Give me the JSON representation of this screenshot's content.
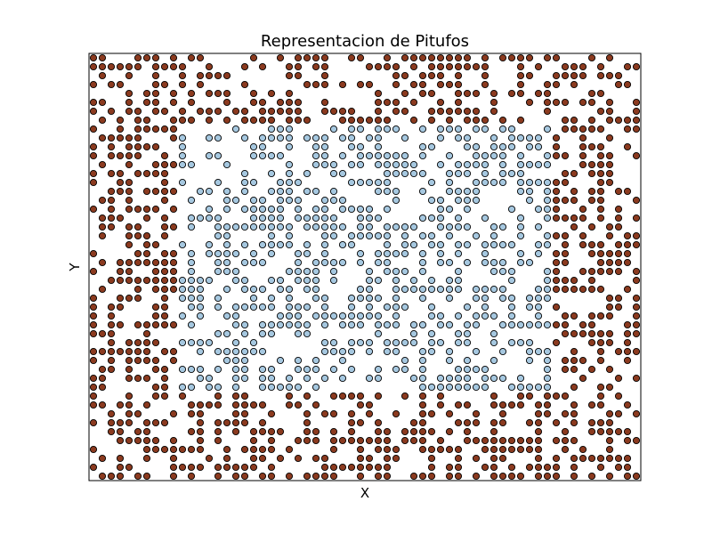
{
  "chart_data": {
    "type": "scatter",
    "title": "Representacion de Pitufos",
    "xlabel": "X",
    "ylabel": "Y",
    "xlim": [
      0,
      62
    ],
    "ylim": [
      0,
      48
    ],
    "grid": false,
    "ticks_visible": false,
    "legend": "none",
    "layout": {
      "grid_cols": 62,
      "grid_rows": 48,
      "inner_region": {
        "x": [
          10,
          52
        ],
        "y": [
          10,
          40
        ]
      },
      "density": 0.52
    },
    "series": [
      {
        "color": "#8B3A1F",
        "region": "outer",
        "marker": "circle"
      },
      {
        "color": "#A6C8E0",
        "region": "inner",
        "marker": "circle"
      }
    ]
  }
}
